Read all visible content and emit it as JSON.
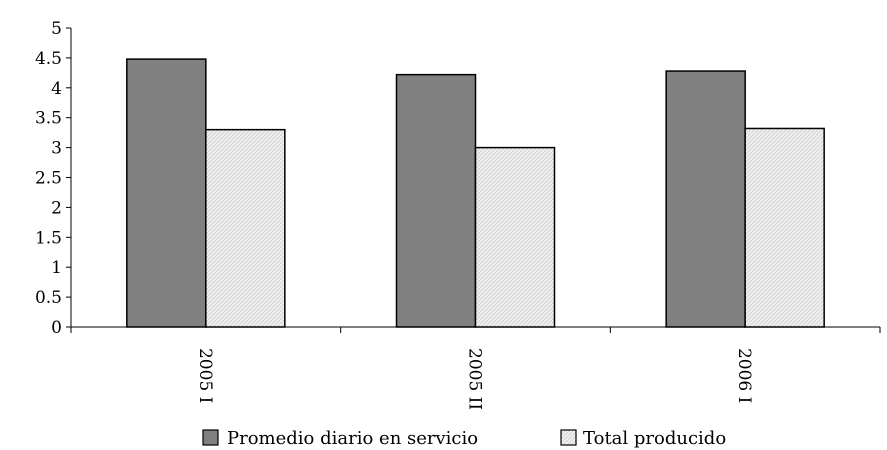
{
  "chart_data": {
    "type": "bar",
    "categories": [
      "2005 I",
      "2005 II",
      "2006 I"
    ],
    "series": [
      {
        "name": "Promedio diario en servicio",
        "values": [
          4.48,
          4.22,
          4.28
        ],
        "color": "#808080"
      },
      {
        "name": "Total producido",
        "values": [
          3.3,
          3.0,
          3.32
        ],
        "color": "#ebebeb"
      }
    ],
    "ylim": [
      0,
      5
    ],
    "yticks": [
      "0",
      "0.5",
      "1",
      "1.5",
      "2",
      "2.5",
      "3",
      "3.5",
      "4",
      "4.5",
      "5"
    ],
    "grid": false,
    "legend_position": "bottom",
    "title": "",
    "xlabel": "",
    "ylabel": ""
  }
}
